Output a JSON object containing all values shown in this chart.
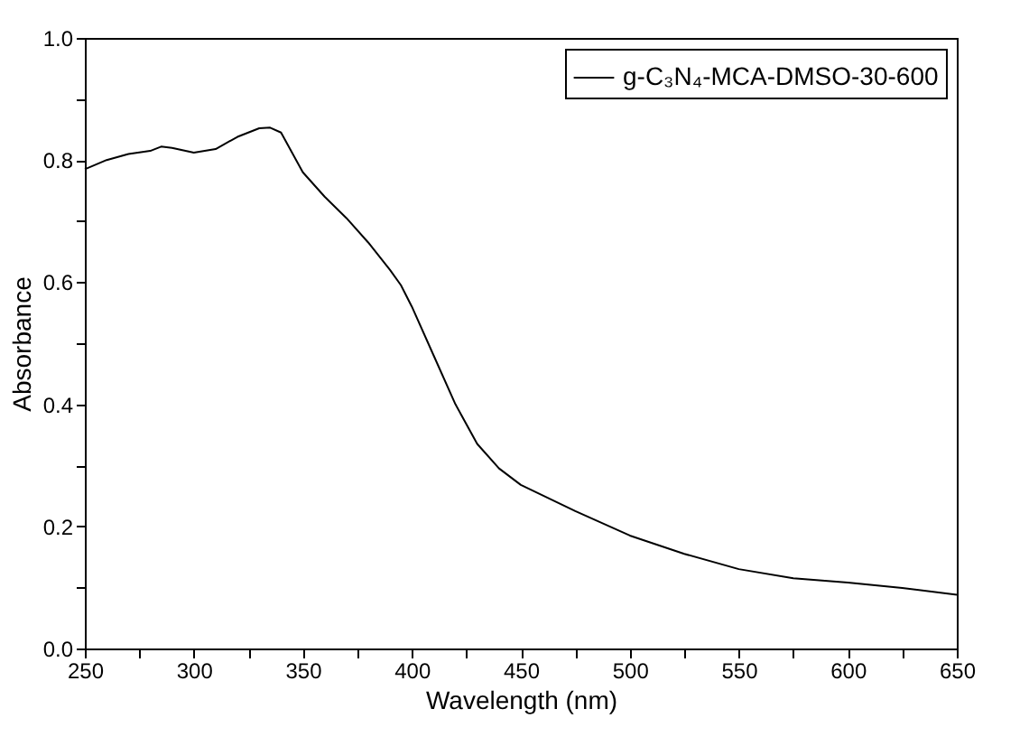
{
  "chart_data": {
    "type": "line",
    "xlabel": "Wavelength (nm)",
    "ylabel": "Absorbance",
    "x": [
      250,
      260,
      270,
      280,
      285,
      290,
      300,
      310,
      320,
      330,
      335,
      340,
      350,
      360,
      370,
      380,
      390,
      395,
      400,
      410,
      420,
      430,
      440,
      450,
      475,
      500,
      525,
      550,
      575,
      600,
      625,
      650
    ],
    "series": [
      {
        "name": "g-C₃N₄-MCA-DMSO-30-600",
        "color": "#000000",
        "values": [
          0.785,
          0.8,
          0.81,
          0.815,
          0.822,
          0.82,
          0.812,
          0.818,
          0.838,
          0.852,
          0.853,
          0.845,
          0.78,
          0.74,
          0.705,
          0.665,
          0.62,
          0.595,
          0.56,
          0.48,
          0.4,
          0.335,
          0.295,
          0.268,
          0.225,
          0.185,
          0.155,
          0.13,
          0.115,
          0.108,
          0.099,
          0.088
        ]
      }
    ],
    "xlim": [
      250,
      650
    ],
    "ylim": [
      0,
      1.0
    ],
    "xticks": [
      250,
      {
        "value": 275,
        "label": null
      },
      300,
      {
        "value": 325,
        "label": null
      },
      350,
      {
        "value": 375,
        "label": null
      },
      400,
      {
        "value": 425,
        "label": null
      },
      450,
      {
        "value": 475,
        "label": null
      },
      500,
      {
        "value": 525,
        "label": null
      },
      550,
      {
        "value": 575,
        "label": null
      },
      600,
      {
        "value": 625,
        "label": null
      },
      650
    ],
    "yticks": [
      {
        "value": 0,
        "label": "0.0"
      },
      {
        "value": 0.1,
        "label": null
      },
      0.2,
      {
        "value": 0.3,
        "label": null
      },
      0.4,
      {
        "value": 0.5,
        "label": null
      },
      0.6,
      {
        "value": 0.7,
        "label": null
      },
      0.8,
      {
        "value": 0.9,
        "label": null
      },
      {
        "value": 1.0,
        "label": "1.0"
      }
    ],
    "grid": false,
    "legend": "top right",
    "marker": "none",
    "line_style": "solid"
  }
}
